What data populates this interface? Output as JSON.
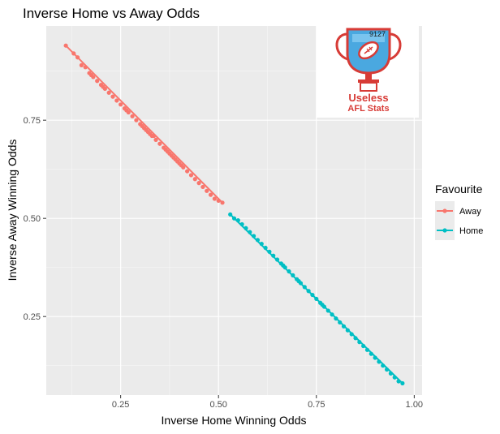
{
  "chart_data": {
    "type": "scatter",
    "title": "Inverse Home vs Away Odds",
    "xlabel": "Inverse Home Winning Odds",
    "ylabel": "Inverse Away Winning Odds",
    "xlim": [
      0.06,
      1.02
    ],
    "ylim": [
      0.05,
      0.99
    ],
    "x_ticks": [
      0.25,
      0.5,
      0.75,
      1.0
    ],
    "x_tick_labels": [
      "0.25",
      "0.50",
      "0.75",
      "1.00"
    ],
    "y_ticks": [
      0.25,
      0.5,
      0.75
    ],
    "y_tick_labels": [
      "0.25",
      "0.50",
      "0.75"
    ],
    "legend": {
      "title": "Favourite",
      "position": "right"
    },
    "series": [
      {
        "name": "Away",
        "color": "#f8766d",
        "line": [
          [
            0.11,
            0.94
          ],
          [
            0.51,
            0.54
          ]
        ],
        "points": [
          [
            0.11,
            0.94
          ],
          [
            0.13,
            0.92
          ],
          [
            0.14,
            0.91
          ],
          [
            0.15,
            0.89
          ],
          [
            0.16,
            0.885
          ],
          [
            0.17,
            0.87
          ],
          [
            0.175,
            0.865
          ],
          [
            0.18,
            0.86
          ],
          [
            0.19,
            0.85
          ],
          [
            0.2,
            0.84
          ],
          [
            0.205,
            0.835
          ],
          [
            0.21,
            0.83
          ],
          [
            0.22,
            0.82
          ],
          [
            0.23,
            0.81
          ],
          [
            0.24,
            0.8
          ],
          [
            0.25,
            0.79
          ],
          [
            0.26,
            0.78
          ],
          [
            0.265,
            0.775
          ],
          [
            0.27,
            0.77
          ],
          [
            0.28,
            0.76
          ],
          [
            0.29,
            0.75
          ],
          [
            0.3,
            0.74
          ],
          [
            0.305,
            0.735
          ],
          [
            0.31,
            0.73
          ],
          [
            0.315,
            0.725
          ],
          [
            0.32,
            0.72
          ],
          [
            0.325,
            0.715
          ],
          [
            0.33,
            0.71
          ],
          [
            0.335,
            0.71
          ],
          [
            0.34,
            0.7
          ],
          [
            0.35,
            0.69
          ],
          [
            0.36,
            0.68
          ],
          [
            0.365,
            0.675
          ],
          [
            0.37,
            0.67
          ],
          [
            0.375,
            0.665
          ],
          [
            0.38,
            0.66
          ],
          [
            0.385,
            0.655
          ],
          [
            0.39,
            0.65
          ],
          [
            0.395,
            0.645
          ],
          [
            0.4,
            0.64
          ],
          [
            0.405,
            0.635
          ],
          [
            0.41,
            0.63
          ],
          [
            0.42,
            0.62
          ],
          [
            0.43,
            0.61
          ],
          [
            0.44,
            0.6
          ],
          [
            0.45,
            0.59
          ],
          [
            0.46,
            0.58
          ],
          [
            0.47,
            0.57
          ],
          [
            0.48,
            0.56
          ],
          [
            0.49,
            0.55
          ],
          [
            0.5,
            0.545
          ],
          [
            0.51,
            0.54
          ]
        ]
      },
      {
        "name": "Home",
        "color": "#00bfc4",
        "line": [
          [
            0.53,
            0.51
          ],
          [
            0.97,
            0.08
          ]
        ],
        "points": [
          [
            0.53,
            0.51
          ],
          [
            0.54,
            0.5
          ],
          [
            0.55,
            0.495
          ],
          [
            0.56,
            0.485
          ],
          [
            0.57,
            0.475
          ],
          [
            0.58,
            0.465
          ],
          [
            0.59,
            0.455
          ],
          [
            0.6,
            0.445
          ],
          [
            0.61,
            0.435
          ],
          [
            0.62,
            0.425
          ],
          [
            0.63,
            0.415
          ],
          [
            0.64,
            0.405
          ],
          [
            0.65,
            0.395
          ],
          [
            0.66,
            0.385
          ],
          [
            0.665,
            0.38
          ],
          [
            0.67,
            0.375
          ],
          [
            0.68,
            0.365
          ],
          [
            0.69,
            0.355
          ],
          [
            0.7,
            0.345
          ],
          [
            0.705,
            0.34
          ],
          [
            0.71,
            0.335
          ],
          [
            0.72,
            0.325
          ],
          [
            0.73,
            0.315
          ],
          [
            0.74,
            0.305
          ],
          [
            0.75,
            0.295
          ],
          [
            0.76,
            0.285
          ],
          [
            0.765,
            0.28
          ],
          [
            0.77,
            0.275
          ],
          [
            0.78,
            0.265
          ],
          [
            0.79,
            0.255
          ],
          [
            0.8,
            0.245
          ],
          [
            0.81,
            0.235
          ],
          [
            0.82,
            0.225
          ],
          [
            0.83,
            0.215
          ],
          [
            0.84,
            0.205
          ],
          [
            0.85,
            0.195
          ],
          [
            0.86,
            0.185
          ],
          [
            0.87,
            0.175
          ],
          [
            0.88,
            0.165
          ],
          [
            0.89,
            0.155
          ],
          [
            0.9,
            0.145
          ],
          [
            0.91,
            0.135
          ],
          [
            0.92,
            0.125
          ],
          [
            0.93,
            0.115
          ],
          [
            0.94,
            0.105
          ],
          [
            0.95,
            0.095
          ],
          [
            0.96,
            0.085
          ],
          [
            0.97,
            0.08
          ]
        ]
      }
    ],
    "grid": true
  },
  "logo": {
    "line1": "Useless",
    "line2": "AFL Stats",
    "badge_text": "9127"
  }
}
